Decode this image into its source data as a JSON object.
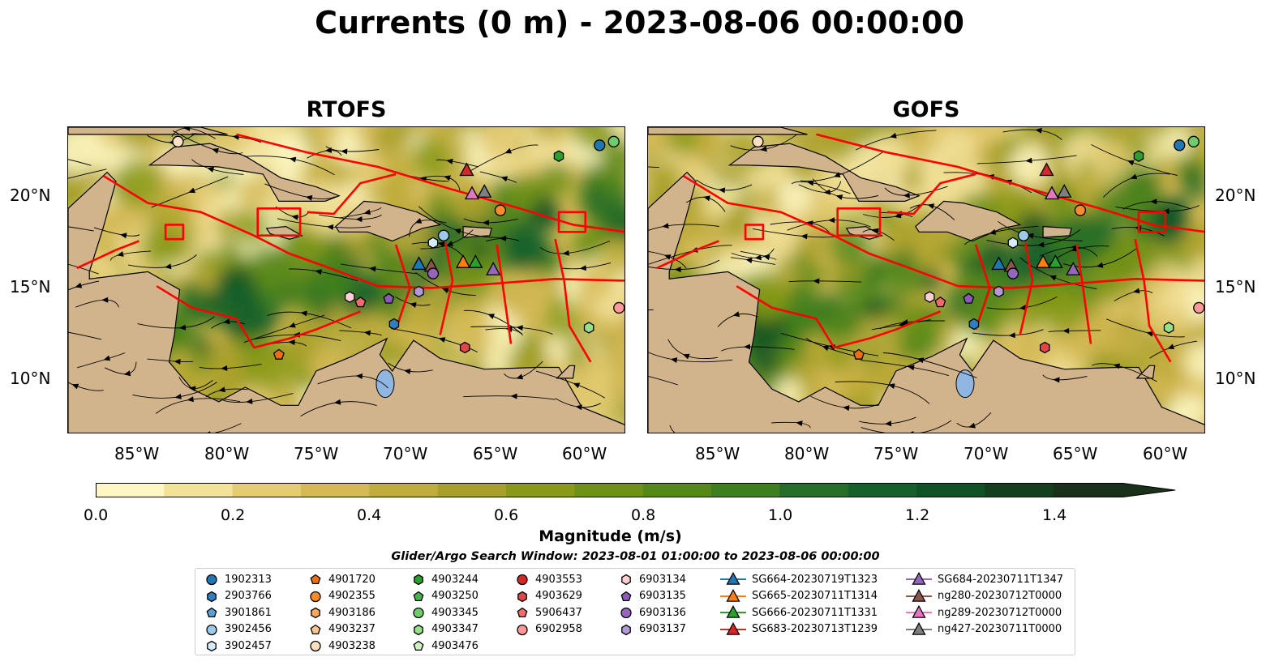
{
  "title": "Currents (0 m) - 2023-08-06 00:00:00",
  "panels": [
    {
      "title": "RTOFS",
      "seed": 7
    },
    {
      "title": "GOFS",
      "seed": 13
    }
  ],
  "axes": {
    "y_ticks": [
      "20°N",
      "15°N",
      "10°N"
    ],
    "x_ticks": [
      "85°W",
      "80°W",
      "75°W",
      "70°W",
      "65°W",
      "60°W"
    ],
    "lon_range": [
      -89.5,
      -58
    ],
    "lat_range": [
      7,
      24
    ]
  },
  "colorbar": {
    "label": "Magnitude (m/s)",
    "ticks": [
      "0.0",
      "0.2",
      "0.4",
      "0.6",
      "0.8",
      "1.0",
      "1.2",
      "1.4"
    ],
    "range": [
      0,
      1.5
    ],
    "colors": [
      "#fdf7c3",
      "#f2e29a",
      "#e4cb74",
      "#d4b955",
      "#bfac3c",
      "#a8a02a",
      "#8a9a18",
      "#6f9018",
      "#55881c",
      "#3c7e20",
      "#256d28",
      "#17602b",
      "#105225",
      "#143f1e",
      "#1a3018"
    ]
  },
  "search_window": "Glider/Argo Search Window: 2023-08-01 01:00:00 to 2023-08-06 00:00:00",
  "legend": [
    {
      "label": "1902313",
      "marker": "circle",
      "color": "#1f77b4"
    },
    {
      "label": "2903766",
      "marker": "hexagon",
      "color": "#2f7fc0"
    },
    {
      "label": "3901861",
      "marker": "pentagon",
      "color": "#5aa0d8"
    },
    {
      "label": "3902456",
      "marker": "circle",
      "color": "#9ecae9"
    },
    {
      "label": "3902457",
      "marker": "hexagon",
      "color": "#d6ecfa"
    },
    {
      "label": "4901720",
      "marker": "pentagon",
      "color": "#e8700f"
    },
    {
      "label": "4902355",
      "marker": "circle",
      "color": "#f58b2e"
    },
    {
      "label": "4903186",
      "marker": "hexagon",
      "color": "#f9a85a"
    },
    {
      "label": "4903237",
      "marker": "pentagon",
      "color": "#fcc68e"
    },
    {
      "label": "4903238",
      "marker": "circle",
      "color": "#fde0c0"
    },
    {
      "label": "4903244",
      "marker": "hexagon",
      "color": "#2ca02c"
    },
    {
      "label": "4903250",
      "marker": "pentagon",
      "color": "#49b449"
    },
    {
      "label": "4903345",
      "marker": "circle",
      "color": "#6fcc6a"
    },
    {
      "label": "4903347",
      "marker": "hexagon",
      "color": "#98df8a"
    },
    {
      "label": "4903476",
      "marker": "pentagon",
      "color": "#cdf2c0"
    },
    {
      "label": "4903553",
      "marker": "circle",
      "color": "#d62728"
    },
    {
      "label": "4903629",
      "marker": "hexagon",
      "color": "#e0474a"
    },
    {
      "label": "5906437",
      "marker": "pentagon",
      "color": "#ee6c6c"
    },
    {
      "label": "6902958",
      "marker": "circle",
      "color": "#ff9896"
    },
    {
      "label": "6903134",
      "marker": "hexagon",
      "color": "#ffd0d2"
    },
    {
      "label": "6903135",
      "marker": "pentagon",
      "color": "#8a5bb8"
    },
    {
      "label": "6903136",
      "marker": "circle",
      "color": "#9467bd"
    },
    {
      "label": "6903137",
      "marker": "hexagon",
      "color": "#b39ad6"
    },
    {
      "label": "SG664-20230719T1323",
      "marker": "triangle",
      "color": "#1f77b4"
    },
    {
      "label": "SG665-20230711T1314",
      "marker": "triangle",
      "color": "#ff7f0e"
    },
    {
      "label": "SG666-20230711T1331",
      "marker": "triangle",
      "color": "#2ca02c"
    },
    {
      "label": "SG683-20230713T1239",
      "marker": "triangle",
      "color": "#d62728"
    },
    {
      "label": "SG684-20230711T1347",
      "marker": "triangle",
      "color": "#9467bd"
    },
    {
      "label": "ng280-20230712T0000",
      "marker": "triangle",
      "color": "#8c564b"
    },
    {
      "label": "ng289-20230712T0000",
      "marker": "triangle",
      "color": "#e377c2"
    },
    {
      "label": "ng427-20230711T0000",
      "marker": "triangle",
      "color": "#7f7f7f"
    }
  ],
  "platforms": [
    {
      "id": "1902313",
      "lon": -59.5,
      "lat": 23.0
    },
    {
      "id": "4903345",
      "lon": -58.7,
      "lat": 23.2
    },
    {
      "id": "4903238",
      "lon": -83.3,
      "lat": 23.2
    },
    {
      "id": "4903244",
      "lon": -61.8,
      "lat": 22.4
    },
    {
      "id": "SG683-20230713T1239",
      "lon": -67.0,
      "lat": 21.6
    },
    {
      "id": "ng289-20230712T0000",
      "lon": -66.7,
      "lat": 20.3
    },
    {
      "id": "ng427-20230711T0000",
      "lon": -66.0,
      "lat": 20.4
    },
    {
      "id": "4902355",
      "lon": -65.1,
      "lat": 19.4
    },
    {
      "id": "3902456",
      "lon": -68.3,
      "lat": 18.0
    },
    {
      "id": "3902457",
      "lon": -68.9,
      "lat": 17.6
    },
    {
      "id": "SG664-20230719T1323",
      "lon": -69.7,
      "lat": 16.4
    },
    {
      "id": "ng280-20230712T0000",
      "lon": -69.0,
      "lat": 16.3
    },
    {
      "id": "SG665-20230711T1314",
      "lon": -67.2,
      "lat": 16.5
    },
    {
      "id": "SG666-20230711T1331",
      "lon": -66.5,
      "lat": 16.5
    },
    {
      "id": "SG684-20230711T1347",
      "lon": -65.5,
      "lat": 16.1
    },
    {
      "id": "6903136",
      "lon": -68.9,
      "lat": 15.9
    },
    {
      "id": "6903137",
      "lon": -69.7,
      "lat": 14.9
    },
    {
      "id": "6903134",
      "lon": -73.6,
      "lat": 14.6
    },
    {
      "id": "5906437",
      "lon": -73.0,
      "lat": 14.3
    },
    {
      "id": "6903135",
      "lon": -71.4,
      "lat": 14.5
    },
    {
      "id": "2903766",
      "lon": -71.1,
      "lat": 13.1
    },
    {
      "id": "6902958",
      "lon": -58.4,
      "lat": 14.0
    },
    {
      "id": "4903347",
      "lon": -60.1,
      "lat": 12.9
    },
    {
      "id": "4903629",
      "lon": -67.1,
      "lat": 11.8
    },
    {
      "id": "4901720",
      "lon": -77.6,
      "lat": 11.4
    }
  ]
}
